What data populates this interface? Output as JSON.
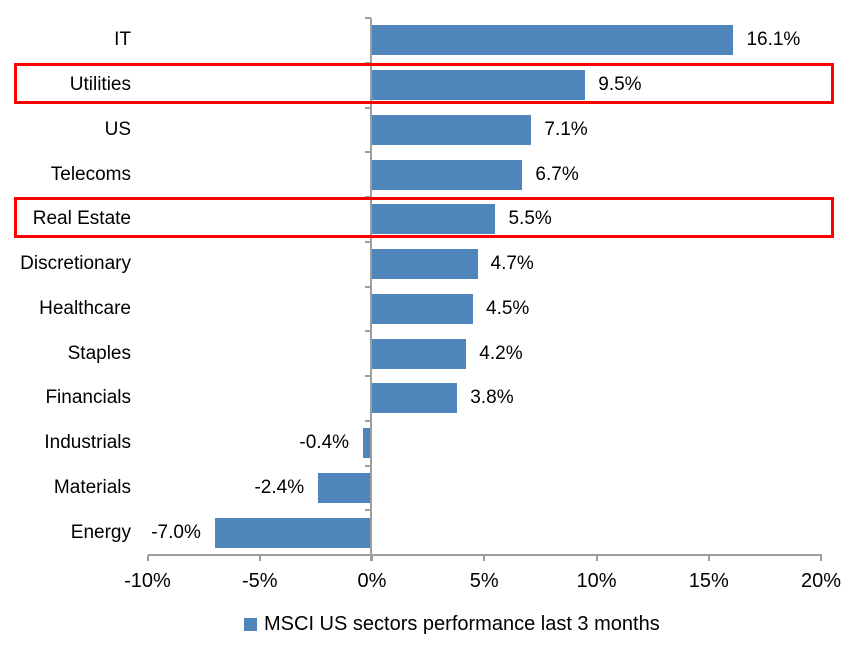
{
  "chart_data": {
    "type": "bar",
    "orientation": "horizontal",
    "categories": [
      "IT",
      "Utilities",
      "US",
      "Telecoms",
      "Real Estate",
      "Discretionary",
      "Healthcare",
      "Staples",
      "Financials",
      "Industrials",
      "Materials",
      "Energy"
    ],
    "values": [
      16.1,
      9.5,
      7.1,
      6.7,
      5.5,
      4.7,
      4.5,
      4.2,
      3.8,
      -0.4,
      -2.4,
      -7.0
    ],
    "data_labels": [
      "16.1%",
      "9.5%",
      "7.1%",
      "6.7%",
      "5.5%",
      "4.7%",
      "4.5%",
      "4.2%",
      "3.8%",
      "-0.4%",
      "-2.4%",
      "-7.0%"
    ],
    "xlim": [
      -10,
      20
    ],
    "x_ticks": {
      "values": [
        -10,
        -5,
        0,
        5,
        10,
        15,
        20
      ],
      "labels": [
        "-10%",
        "-5%",
        "0%",
        "5%",
        "10%",
        "15%",
        "20%"
      ]
    },
    "grid": false,
    "bar_color": "#4E86BC",
    "axis_color": "#9E9E9E",
    "text_color": "#000000",
    "highlight_color": "#FF0000",
    "highlighted_categories": [
      "Utilities",
      "Real Estate"
    ],
    "legend": {
      "position": "bottom",
      "entries": [
        {
          "label": "MSCI US sectors performance last 3 months",
          "marker_color": "#4E86BC"
        }
      ]
    }
  }
}
